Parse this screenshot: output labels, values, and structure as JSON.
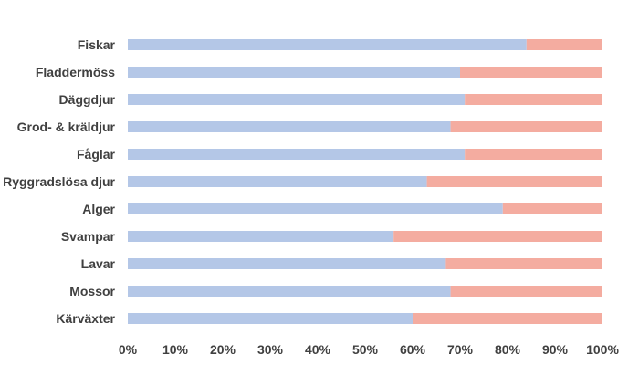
{
  "chart_data": {
    "type": "bar",
    "orientation": "horizontal",
    "stacked": "percent",
    "title": "",
    "xlabel": "",
    "ylabel": "",
    "categories": [
      "Fiskar",
      "Fladdermöss",
      "Däggdjur",
      "Grod- & kräldjur",
      "Fåglar",
      "Ryggradslösa djur",
      "Alger",
      "Svampar",
      "Lavar",
      "Mossor",
      "Kärväxter"
    ],
    "series": [
      {
        "color": "#b4c7e7",
        "values": [
          84,
          70,
          71,
          68,
          71,
          63,
          79,
          56,
          67,
          68,
          60
        ]
      },
      {
        "color": "#f4aca0",
        "values": [
          16,
          30,
          29,
          32,
          29,
          37,
          21,
          44,
          33,
          32,
          40
        ]
      }
    ],
    "xlim": [
      0,
      100
    ],
    "x_ticks": [
      "0%",
      "10%",
      "20%",
      "30%",
      "40%",
      "50%",
      "60%",
      "70%",
      "80%",
      "90%",
      "100%"
    ],
    "grid": false,
    "legend": "none"
  }
}
